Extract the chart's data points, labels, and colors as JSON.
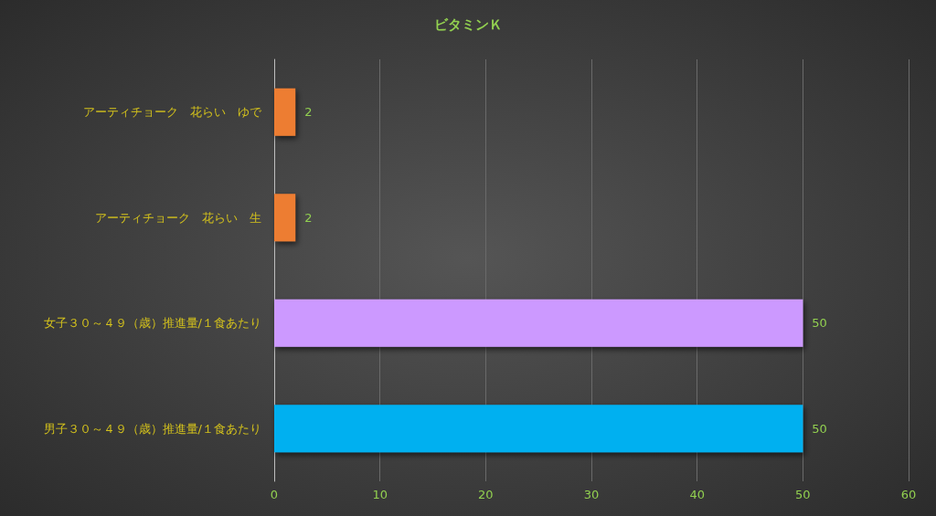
{
  "chart_data": {
    "type": "bar",
    "orientation": "horizontal",
    "title": "ビタミンＫ",
    "categories": [
      "アーティチョーク　花らい　ゆで",
      "アーティチョーク　花らい　生",
      "女子３０～４９（歳）推進量/１食あたり",
      "男子３０～４９（歳）推進量/１食あたり"
    ],
    "values": [
      2,
      2,
      50,
      50
    ],
    "colors": [
      "#ed7d31",
      "#ed7d31",
      "#cc99ff",
      "#00b0f0"
    ],
    "xlim": [
      0,
      60
    ],
    "xticks": [
      0,
      10,
      20,
      30,
      40,
      50,
      60
    ],
    "grid": "x",
    "data_labels": true
  }
}
